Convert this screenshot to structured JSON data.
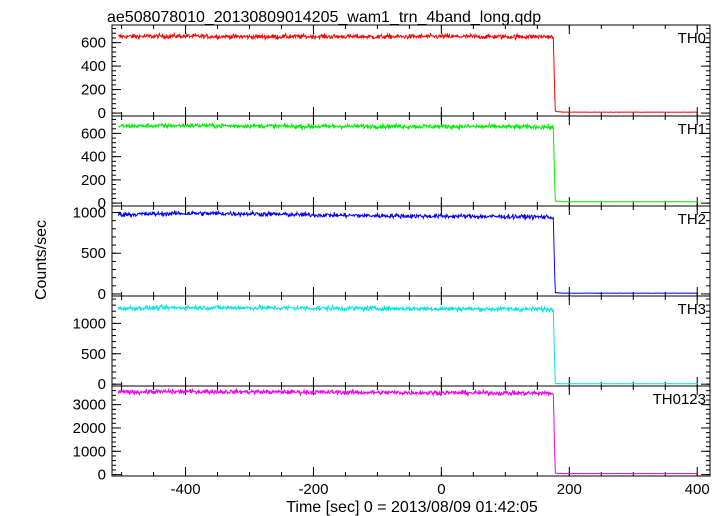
{
  "chart_data": {
    "type": "line",
    "title": "ae508078010_20130809014205_wam1_trn_4band_long.qdp",
    "xlabel": "Time [sec] 0 = 2013/08/09 01:42:05",
    "ylabel": "Counts/sec",
    "xlim": [
      -515,
      420
    ],
    "xticks": [
      -400,
      -200,
      0,
      200,
      400
    ],
    "step_time": 176,
    "data_end": 402,
    "panels": [
      {
        "name": "TH0",
        "color": "#ff0000",
        "ylim": [
          -25,
          750
        ],
        "yticks": [
          0,
          200,
          400,
          600
        ],
        "x": [
          -505,
          -400,
          -300,
          -200,
          -100,
          0,
          100,
          170,
          175,
          178,
          190,
          250,
          300,
          402
        ],
        "y": [
          652,
          655,
          650,
          652,
          650,
          652,
          650,
          652,
          640,
          15,
          8,
          8,
          8,
          8
        ]
      },
      {
        "name": "TH1",
        "color": "#00ee00",
        "ylim": [
          -25,
          750
        ],
        "yticks": [
          0,
          200,
          400,
          600
        ],
        "x": [
          -505,
          -400,
          -300,
          -200,
          -100,
          0,
          100,
          170,
          175,
          178,
          190,
          250,
          300,
          402
        ],
        "y": [
          662,
          668,
          665,
          660,
          662,
          660,
          658,
          655,
          645,
          18,
          12,
          12,
          12,
          12
        ]
      },
      {
        "name": "TH2",
        "color": "#0000ff",
        "ylim": [
          -25,
          1080
        ],
        "yticks": [
          0,
          500,
          1000
        ],
        "x": [
          -505,
          -400,
          -300,
          -200,
          -100,
          0,
          100,
          170,
          175,
          178,
          190,
          250,
          300,
          402
        ],
        "y": [
          975,
          990,
          985,
          970,
          960,
          955,
          950,
          945,
          930,
          15,
          10,
          10,
          10,
          10
        ]
      },
      {
        "name": "TH3",
        "color": "#00e5e5",
        "ylim": [
          -30,
          1450
        ],
        "yticks": [
          0,
          500,
          1000
        ],
        "x": [
          -505,
          -400,
          -300,
          -200,
          -100,
          0,
          100,
          170,
          175,
          178,
          190,
          250,
          300,
          402
        ],
        "y": [
          1245,
          1260,
          1255,
          1250,
          1245,
          1240,
          1235,
          1232,
          1220,
          12,
          8,
          8,
          8,
          8
        ]
      },
      {
        "name": "TH0123",
        "color": "#ee00ee",
        "ylim": [
          -60,
          3800
        ],
        "yticks": [
          0,
          1000,
          2000,
          3000
        ],
        "x": [
          -505,
          -400,
          -300,
          -200,
          -100,
          0,
          100,
          170,
          175,
          178,
          190,
          250,
          300,
          402
        ],
        "y": [
          3540,
          3560,
          3550,
          3535,
          3520,
          3510,
          3500,
          3490,
          3470,
          60,
          45,
          45,
          45,
          45
        ]
      }
    ]
  }
}
